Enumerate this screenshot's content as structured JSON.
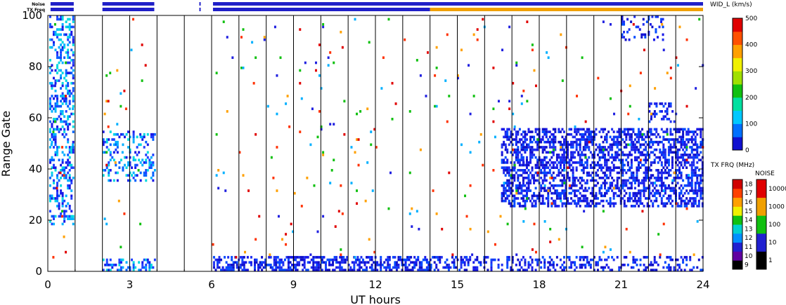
{
  "chart_data": {
    "type": "scatter",
    "xlabel": "UT hours",
    "ylabel": "Range Gate",
    "xlim": [
      0,
      24
    ],
    "ylim": [
      0,
      100
    ],
    "x_ticks": [
      "0",
      "3",
      "6",
      "9",
      "12",
      "15",
      "18",
      "21",
      "24"
    ],
    "y_ticks": [
      "0",
      "20",
      "40",
      "60",
      "80",
      "100"
    ],
    "scan_boundaries_ut": [
      1,
      2,
      3,
      4,
      5,
      6,
      7,
      8,
      9,
      10,
      11,
      12,
      13,
      14,
      15,
      16,
      17,
      18,
      19,
      20,
      21,
      22,
      23,
      24
    ],
    "header_rows": [
      {
        "label": "Noise",
        "segments": [
          {
            "start": 0.1,
            "end": 0.95,
            "color": "#2020c8"
          },
          {
            "start": 2.0,
            "end": 3.9,
            "color": "#2020c8"
          },
          {
            "start": 5.55,
            "end": 5.6,
            "color": "#2020c8"
          },
          {
            "start": 6.05,
            "end": 24.0,
            "color": "#2020c8"
          }
        ]
      },
      {
        "label": "TX Freq",
        "segments": [
          {
            "start": 0.1,
            "end": 0.95,
            "color": "#2020c8"
          },
          {
            "start": 2.0,
            "end": 3.9,
            "color": "#2020c8"
          },
          {
            "start": 5.55,
            "end": 5.6,
            "color": "#2020c8"
          },
          {
            "start": 6.05,
            "end": 14.0,
            "color": "#2020c8"
          },
          {
            "start": 14.0,
            "end": 24.0,
            "color": "#f0a000"
          }
        ]
      }
    ],
    "echo_regions": [
      {
        "x0": 0.05,
        "x1": 0.95,
        "y0": 18,
        "y1": 100,
        "density": 0.35,
        "palette": "blue-cyan"
      },
      {
        "x0": 2.0,
        "x1": 3.9,
        "y0": 35,
        "y1": 55,
        "density": 0.25,
        "palette": "blue-cyan"
      },
      {
        "x0": 2.0,
        "x1": 3.9,
        "y0": 0,
        "y1": 5,
        "density": 0.4,
        "palette": "blue-cyan"
      },
      {
        "x0": 6.05,
        "x1": 14.0,
        "y0": 0,
        "y1": 6,
        "density": 0.55,
        "palette": "blue"
      },
      {
        "x0": 14.0,
        "x1": 24.0,
        "y0": 0,
        "y1": 6,
        "density": 0.3,
        "palette": "blue"
      },
      {
        "x0": 16.6,
        "x1": 24.0,
        "y0": 25,
        "y1": 56,
        "density": 0.5,
        "palette": "blue"
      },
      {
        "x0": 22.0,
        "x1": 23.0,
        "y0": 58,
        "y1": 66,
        "density": 0.35,
        "palette": "blue"
      },
      {
        "x0": 21.0,
        "x1": 22.5,
        "y0": 90,
        "y1": 100,
        "density": 0.2,
        "palette": "blue"
      }
    ],
    "scatter_density": 0.012,
    "colorbars": [
      {
        "title": "WID_L (km/s)",
        "ticks": [
          "0",
          "100",
          "200",
          "300",
          "400",
          "500"
        ],
        "colors": [
          "#1010d0",
          "#0070ff",
          "#00c8ff",
          "#00e0a0",
          "#10c010",
          "#a0e000",
          "#f0f000",
          "#ffa000",
          "#ff5000",
          "#e00000"
        ]
      },
      {
        "title": "TX FRQ (MHz)",
        "ticks": [
          "9",
          "10",
          "11",
          "12",
          "13",
          "14",
          "15",
          "16",
          "17",
          "18"
        ],
        "colors": [
          "#000000",
          "#6000a0",
          "#2020d0",
          "#0090ff",
          "#00d0d0",
          "#10c010",
          "#f0f000",
          "#ffa000",
          "#ff4000",
          "#d00000"
        ]
      },
      {
        "title": "NOISE",
        "ticks": [
          "1",
          "10",
          "100",
          "1000",
          "10000"
        ],
        "colors": [
          "#000000",
          "#2020d0",
          "#10c010",
          "#f0a000",
          "#e00000"
        ]
      }
    ]
  }
}
